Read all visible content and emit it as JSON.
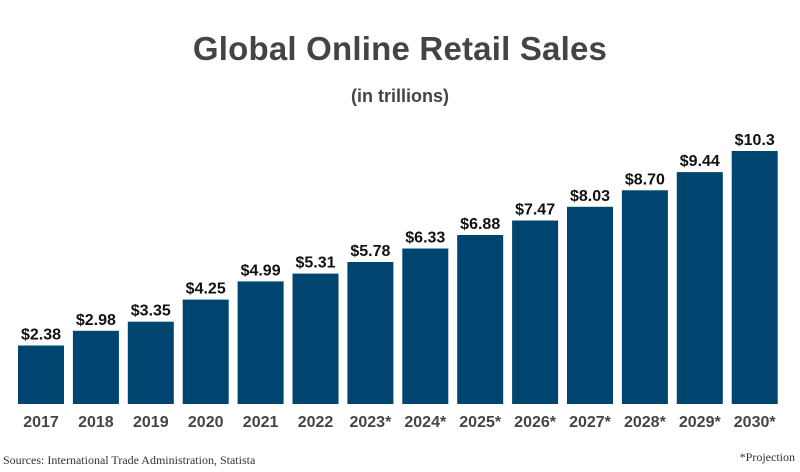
{
  "chart_data": {
    "type": "bar",
    "title": "Global Online Retail Sales",
    "subtitle": "(in trillions)",
    "categories": [
      "2017",
      "2018",
      "2019",
      "2020",
      "2021",
      "2022",
      "2023*",
      "2024*",
      "2025*",
      "2026*",
      "2027*",
      "2028*",
      "2029*",
      "2030*"
    ],
    "values": [
      2.38,
      2.98,
      3.35,
      4.25,
      4.99,
      5.31,
      5.78,
      6.33,
      6.88,
      7.47,
      8.03,
      8.7,
      9.44,
      10.3
    ],
    "data_labels": [
      "$2.38",
      "$2.98",
      "$3.35",
      "$4.25",
      "$4.99",
      "$5.31",
      "$5.78",
      "$6.33",
      "$6.88",
      "$7.47",
      "$8.03",
      "$8.70",
      "$9.44",
      "$10.3"
    ],
    "xlabel": "",
    "ylabel": "",
    "ylim": [
      0,
      10.3
    ],
    "grid": false,
    "bar_color": "#00456f"
  },
  "footer": {
    "source": "Sources: International Trade Administration, Statista",
    "note": "*Projection"
  }
}
